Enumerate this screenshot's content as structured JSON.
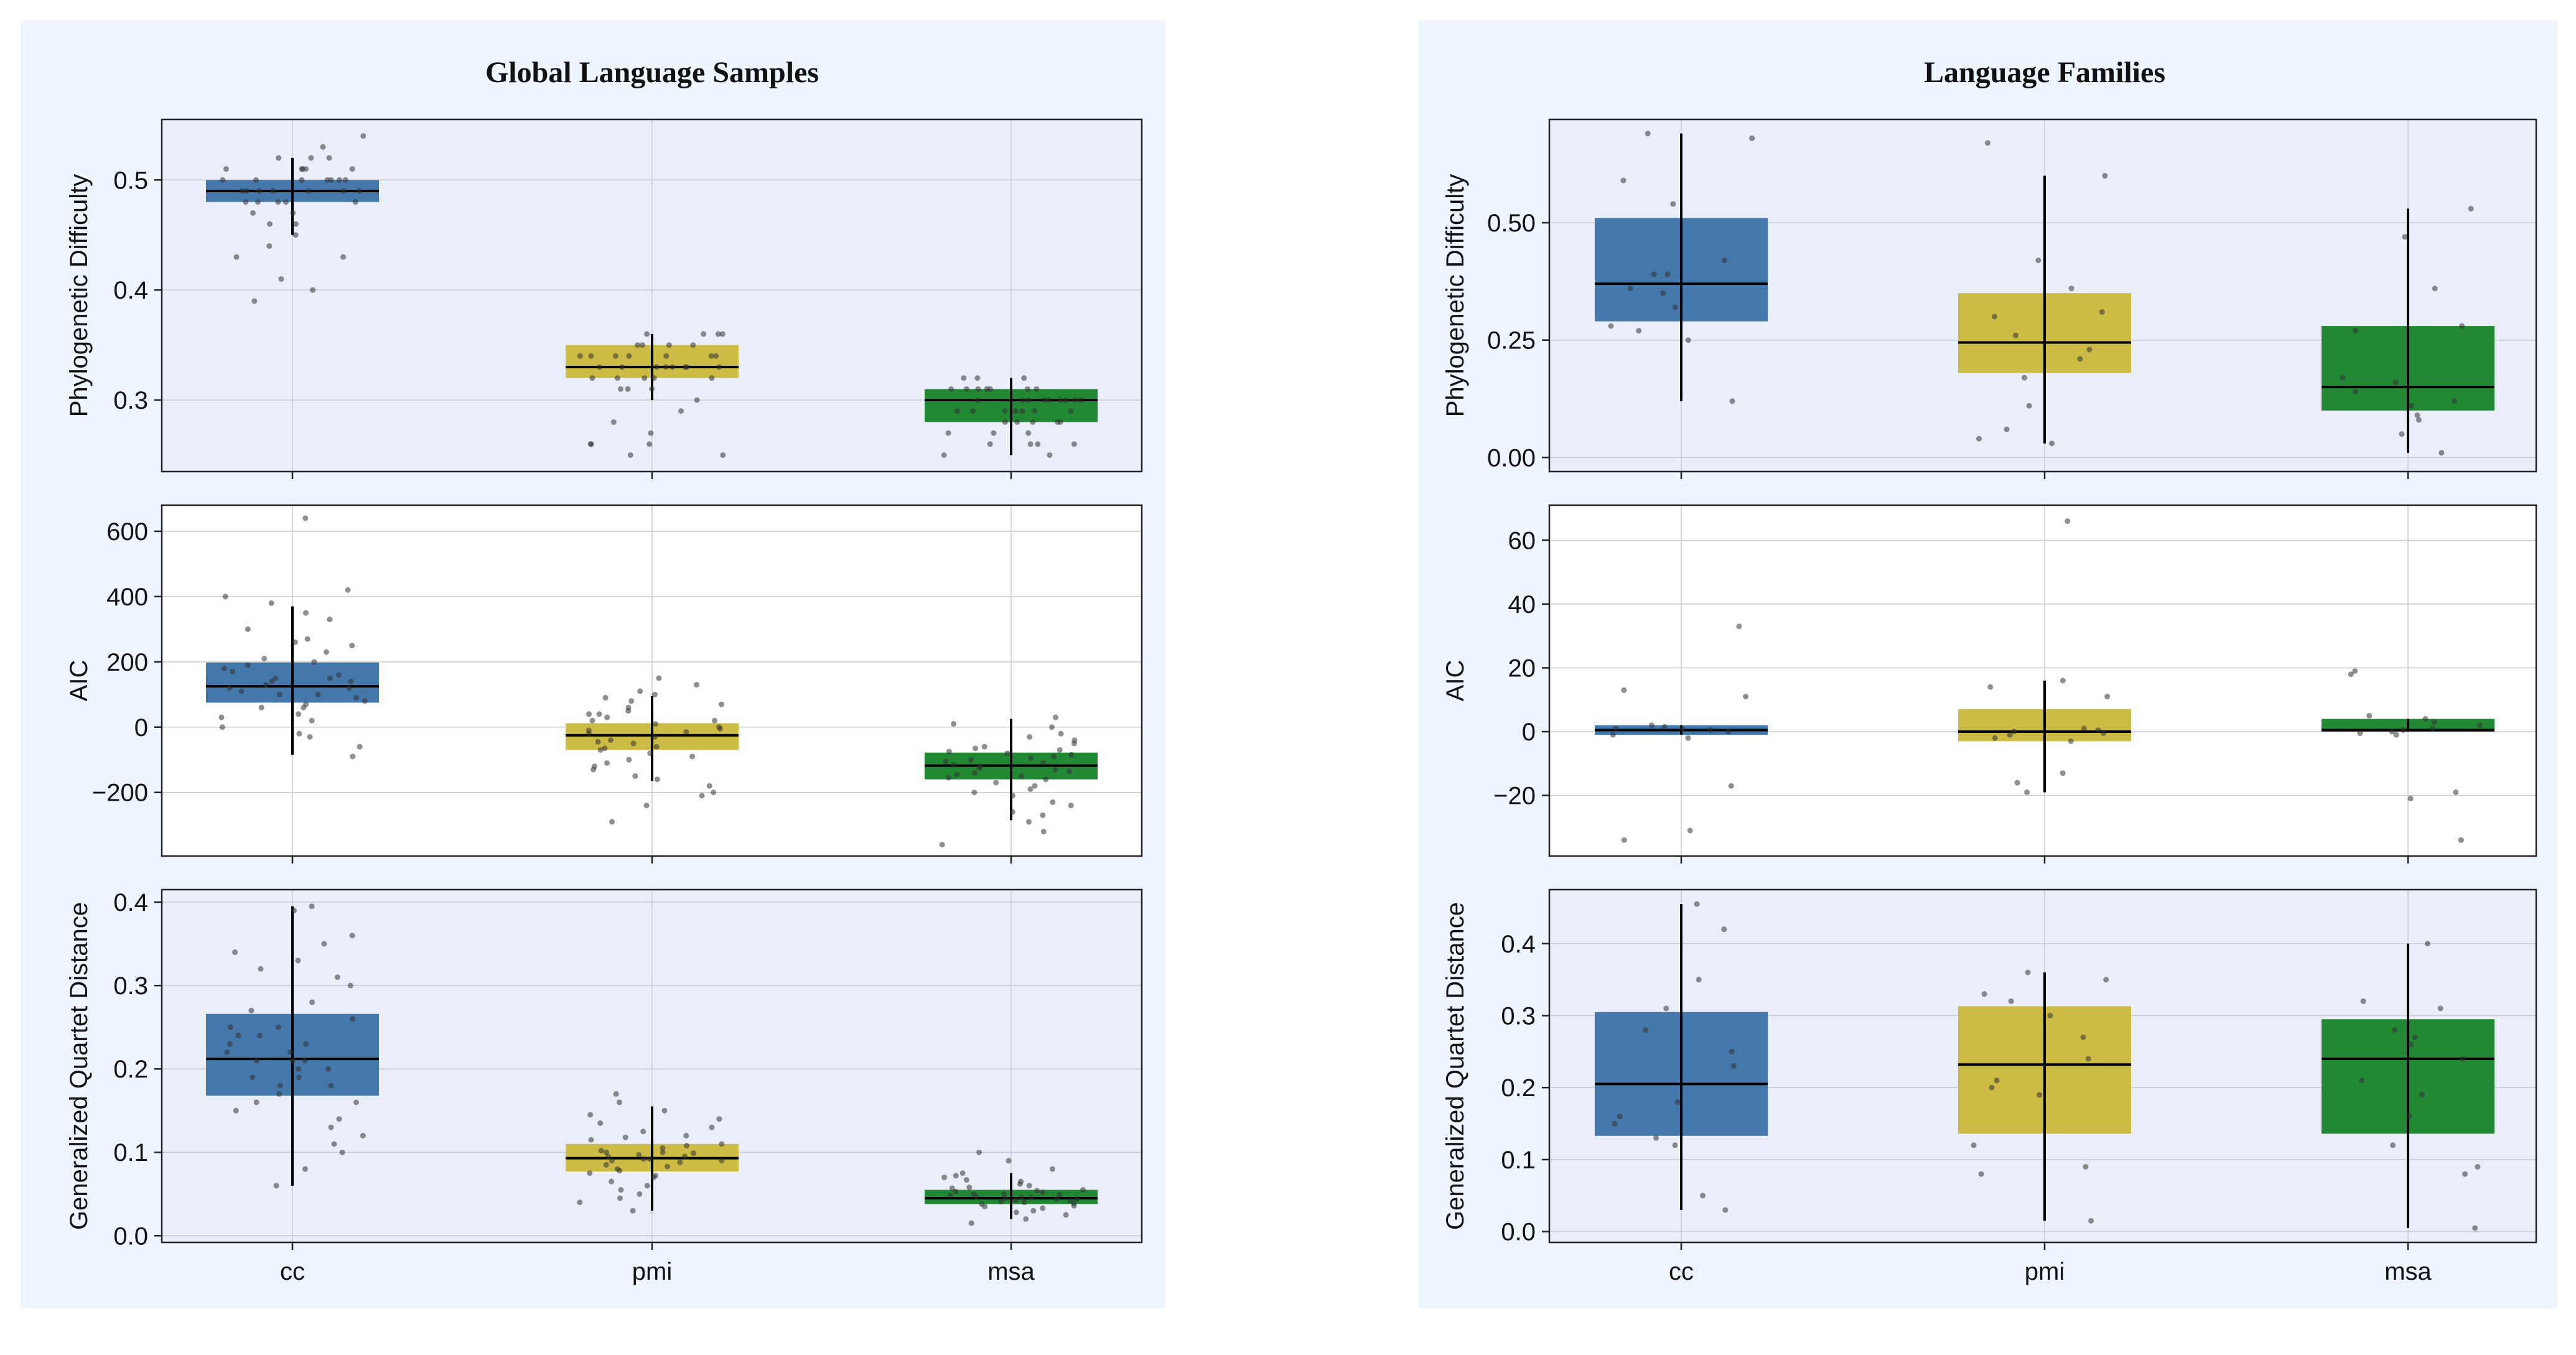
{
  "colors": {
    "cc": "#4477aa",
    "pmi": "#ccbb44",
    "msa": "#228833"
  },
  "chart_data": [
    {
      "type": "box",
      "title": "Global Language Samples",
      "categories": [
        "cc",
        "pmi",
        "msa"
      ],
      "subplots": [
        {
          "ylabel": "Phylogenetic Difficulty",
          "ylim": [
            0.235,
            0.555
          ],
          "yticks": [
            0.3,
            0.4,
            0.5
          ],
          "ytick_labels": [
            "0.3",
            "0.4",
            "0.5"
          ],
          "bg": "#eaeef8",
          "boxes": [
            {
              "category": "cc",
              "q1": 0.48,
              "median": 0.49,
              "q3": 0.5,
              "whisker_low": 0.45,
              "whisker_high": 0.52
            },
            {
              "category": "pmi",
              "q1": 0.32,
              "median": 0.33,
              "q3": 0.35,
              "whisker_low": 0.3,
              "whisker_high": 0.36
            },
            {
              "category": "msa",
              "q1": 0.28,
              "median": 0.3,
              "q3": 0.31,
              "whisker_low": 0.25,
              "whisker_high": 0.32
            }
          ],
          "points": [
            [
              0.49,
              0.5,
              0.51,
              0.48,
              0.49,
              0.5,
              0.52,
              0.47,
              0.46,
              0.45,
              0.5,
              0.51,
              0.49,
              0.48,
              0.43,
              0.44,
              0.41,
              0.39,
              0.54,
              0.53,
              0.5,
              0.49,
              0.51,
              0.52,
              0.48,
              0.47,
              0.5,
              0.49,
              0.51,
              0.48,
              0.46,
              0.5,
              0.49,
              0.52,
              0.51,
              0.43,
              0.4,
              0.49,
              0.5,
              0.48
            ],
            [
              0.33,
              0.34,
              0.32,
              0.35,
              0.36,
              0.33,
              0.34,
              0.31,
              0.3,
              0.33,
              0.32,
              0.35,
              0.36,
              0.34,
              0.26,
              0.25,
              0.27,
              0.26,
              0.32,
              0.33,
              0.34,
              0.35,
              0.33,
              0.32,
              0.31,
              0.34,
              0.36,
              0.33,
              0.29,
              0.26,
              0.25,
              0.33,
              0.35,
              0.34,
              0.32,
              0.36,
              0.34,
              0.33,
              0.31,
              0.28
            ],
            [
              0.3,
              0.31,
              0.29,
              0.28,
              0.3,
              0.32,
              0.31,
              0.29,
              0.27,
              0.26,
              0.25,
              0.3,
              0.31,
              0.29,
              0.28,
              0.3,
              0.32,
              0.31,
              0.26,
              0.27,
              0.29,
              0.3,
              0.31,
              0.28,
              0.29,
              0.3,
              0.32,
              0.25,
              0.26,
              0.3,
              0.31,
              0.29,
              0.28,
              0.3,
              0.27,
              0.31,
              0.3,
              0.29,
              0.28,
              0.26
            ]
          ]
        },
        {
          "ylabel": "AIC",
          "ylim": [
            -395,
            680
          ],
          "yticks": [
            -200,
            0,
            200,
            400,
            600
          ],
          "ytick_labels": [
            "−200",
            "0",
            "200",
            "400",
            "600"
          ],
          "bg": "#ffffff",
          "boxes": [
            {
              "category": "cc",
              "q1": 75,
              "median": 125,
              "q3": 198,
              "whisker_low": -85,
              "whisker_high": 370
            },
            {
              "category": "pmi",
              "q1": -70,
              "median": -25,
              "q3": 12,
              "whisker_low": -165,
              "whisker_high": 95
            },
            {
              "category": "msa",
              "q1": -160,
              "median": -118,
              "q3": -78,
              "whisker_low": -285,
              "whisker_high": 25
            }
          ],
          "points": [
            [
              640,
              400,
              380,
              420,
              300,
              250,
              200,
              150,
              120,
              100,
              90,
              60,
              40,
              20,
              -30,
              -60,
              -90,
              180,
              160,
              140,
              130,
              110,
              80,
              70,
              230,
              270,
              330,
              350,
              210,
              190,
              170,
              150,
              120,
              100,
              60,
              30,
              0,
              -20,
              260,
              140
            ],
            [
              150,
              100,
              80,
              60,
              40,
              20,
              0,
              -20,
              -40,
              -60,
              -80,
              -100,
              -130,
              -150,
              -200,
              -240,
              -290,
              90,
              70,
              50,
              30,
              10,
              -10,
              -30,
              -50,
              -70,
              -90,
              -110,
              -160,
              -180,
              20,
              40,
              -5,
              -15,
              -45,
              -65,
              110,
              130,
              -120,
              -210
            ],
            [
              30,
              10,
              -20,
              -40,
              -60,
              -80,
              -100,
              -120,
              -140,
              -160,
              -180,
              -200,
              -230,
              -260,
              -290,
              -320,
              -360,
              0,
              -30,
              -50,
              -70,
              -90,
              -110,
              -130,
              -150,
              -170,
              -190,
              -210,
              -240,
              -270,
              -115,
              -125,
              -135,
              -95,
              -85,
              -75,
              -145,
              -155,
              -105,
              -65
            ]
          ]
        },
        {
          "ylabel": "Generalized Quartet Distance",
          "ylim": [
            -0.008,
            0.415
          ],
          "yticks": [
            0.0,
            0.1,
            0.2,
            0.3,
            0.4
          ],
          "ytick_labels": [
            "0.0",
            "0.1",
            "0.2",
            "0.3",
            "0.4"
          ],
          "bg": "#eaeef8",
          "boxes": [
            {
              "category": "cc",
              "q1": 0.168,
              "median": 0.212,
              "q3": 0.266,
              "whisker_low": 0.06,
              "whisker_high": 0.395
            },
            {
              "category": "pmi",
              "q1": 0.077,
              "median": 0.093,
              "q3": 0.11,
              "whisker_low": 0.03,
              "whisker_high": 0.155
            },
            {
              "category": "msa",
              "q1": 0.038,
              "median": 0.045,
              "q3": 0.055,
              "whisker_low": 0.02,
              "whisker_high": 0.075
            }
          ],
          "points": [
            [
              0.395,
              0.39,
              0.36,
              0.35,
              0.34,
              0.32,
              0.3,
              0.28,
              0.26,
              0.25,
              0.24,
              0.23,
              0.22,
              0.21,
              0.2,
              0.19,
              0.18,
              0.17,
              0.16,
              0.15,
              0.14,
              0.13,
              0.12,
              0.11,
              0.1,
              0.08,
              0.06,
              0.21,
              0.22,
              0.2,
              0.19,
              0.23,
              0.25,
              0.27,
              0.31,
              0.33,
              0.18,
              0.16,
              0.24,
              0.21
            ],
            [
              0.17,
              0.16,
              0.15,
              0.14,
              0.13,
              0.12,
              0.115,
              0.11,
              0.105,
              0.1,
              0.095,
              0.09,
              0.085,
              0.08,
              0.075,
              0.07,
              0.065,
              0.06,
              0.05,
              0.04,
              0.03,
              0.09,
              0.1,
              0.095,
              0.092,
              0.088,
              0.097,
              0.102,
              0.108,
              0.083,
              0.078,
              0.072,
              0.118,
              0.125,
              0.135,
              0.145,
              0.055,
              0.045,
              0.092,
              0.099
            ],
            [
              0.1,
              0.09,
              0.08,
              0.075,
              0.07,
              0.065,
              0.06,
              0.055,
              0.05,
              0.048,
              0.046,
              0.044,
              0.042,
              0.04,
              0.038,
              0.035,
              0.03,
              0.025,
              0.02,
              0.015,
              0.05,
              0.045,
              0.043,
              0.047,
              0.052,
              0.058,
              0.062,
              0.036,
              0.033,
              0.028,
              0.041,
              0.049,
              0.054,
              0.057,
              0.044,
              0.039,
              0.046,
              0.053,
              0.067,
              0.072
            ]
          ]
        }
      ]
    },
    {
      "type": "box",
      "title": "Language Families",
      "categories": [
        "cc",
        "pmi",
        "msa"
      ],
      "subplots": [
        {
          "ylabel": "Phylogenetic Difficulty",
          "ylim": [
            -0.03,
            0.72
          ],
          "yticks": [
            0.0,
            0.25,
            0.5
          ],
          "ytick_labels": [
            "0.00",
            "0.25",
            "0.50"
          ],
          "bg": "#eaeef8",
          "boxes": [
            {
              "category": "cc",
              "q1": 0.29,
              "median": 0.37,
              "q3": 0.51,
              "whisker_low": 0.12,
              "whisker_high": 0.69
            },
            {
              "category": "pmi",
              "q1": 0.18,
              "median": 0.245,
              "q3": 0.35,
              "whisker_low": 0.03,
              "whisker_high": 0.6
            },
            {
              "category": "msa",
              "q1": 0.1,
              "median": 0.15,
              "q3": 0.28,
              "whisker_low": 0.01,
              "whisker_high": 0.53
            }
          ],
          "points": [
            [
              0.69,
              0.68,
              0.59,
              0.54,
              0.42,
              0.39,
              0.39,
              0.36,
              0.35,
              0.32,
              0.28,
              0.27,
              0.25,
              0.12
            ],
            [
              0.67,
              0.6,
              0.42,
              0.36,
              0.31,
              0.3,
              0.26,
              0.23,
              0.21,
              0.17,
              0.11,
              0.06,
              0.04,
              0.03
            ],
            [
              0.53,
              0.47,
              0.36,
              0.28,
              0.27,
              0.17,
              0.16,
              0.14,
              0.12,
              0.11,
              0.09,
              0.08,
              0.05,
              0.01
            ]
          ]
        },
        {
          "ylabel": "AIC",
          "ylim": [
            -39,
            71
          ],
          "yticks": [
            -20,
            0,
            20,
            40,
            60
          ],
          "ytick_labels": [
            "−20",
            "0",
            "20",
            "40",
            "60"
          ],
          "bg": "#ffffff",
          "boxes": [
            {
              "category": "cc",
              "q1": -1,
              "median": 0.5,
              "q3": 2,
              "whisker_low": -1,
              "whisker_high": 2
            },
            {
              "category": "pmi",
              "q1": -3,
              "median": 0,
              "q3": 7,
              "whisker_low": -19,
              "whisker_high": 16
            },
            {
              "category": "msa",
              "q1": 0,
              "median": 0.5,
              "q3": 4,
              "whisker_low": 0,
              "whisker_high": 4
            }
          ],
          "points": [
            [
              33,
              13,
              11,
              2,
              1,
              0.5,
              0,
              -1,
              -2,
              -17,
              -31,
              -34,
              1.5,
              0.8
            ],
            [
              66,
              16,
              14,
              11,
              1,
              0,
              -1,
              -3,
              -13,
              -16,
              -19,
              -2,
              0.5,
              -0.5
            ],
            [
              19,
              18,
              5,
              4,
              3,
              1,
              0,
              -1,
              -19,
              -21,
              -34,
              2,
              0.5,
              -0.5
            ]
          ]
        },
        {
          "ylabel": "Generalized Quartet Distance",
          "ylim": [
            -0.015,
            0.475
          ],
          "yticks": [
            0.0,
            0.1,
            0.2,
            0.3,
            0.4
          ],
          "ytick_labels": [
            "0.0",
            "0.1",
            "0.2",
            "0.3",
            "0.4"
          ],
          "bg": "#eaeef8",
          "boxes": [
            {
              "category": "cc",
              "q1": 0.133,
              "median": 0.205,
              "q3": 0.305,
              "whisker_low": 0.03,
              "whisker_high": 0.455
            },
            {
              "category": "pmi",
              "q1": 0.136,
              "median": 0.232,
              "q3": 0.313,
              "whisker_low": 0.015,
              "whisker_high": 0.36
            },
            {
              "category": "msa",
              "q1": 0.136,
              "median": 0.24,
              "q3": 0.295,
              "whisker_low": 0.005,
              "whisker_high": 0.4
            }
          ],
          "points": [
            [
              0.455,
              0.42,
              0.35,
              0.31,
              0.28,
              0.25,
              0.23,
              0.18,
              0.16,
              0.15,
              0.13,
              0.12,
              0.05,
              0.03
            ],
            [
              0.36,
              0.35,
              0.33,
              0.32,
              0.3,
              0.27,
              0.24,
              0.21,
              0.2,
              0.19,
              0.12,
              0.09,
              0.08,
              0.015
            ],
            [
              0.4,
              0.32,
              0.31,
              0.28,
              0.27,
              0.26,
              0.24,
              0.21,
              0.19,
              0.16,
              0.12,
              0.09,
              0.08,
              0.005
            ]
          ]
        }
      ]
    }
  ]
}
